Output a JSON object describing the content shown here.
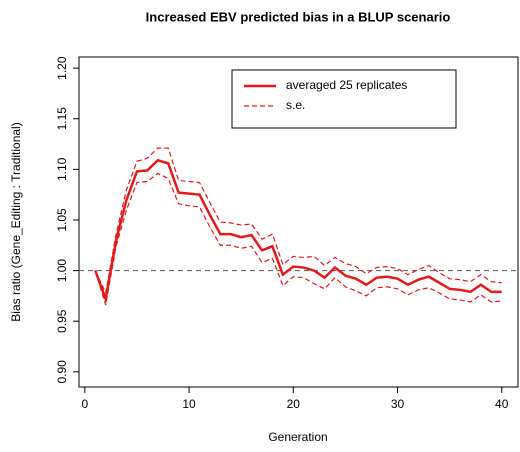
{
  "chart_data": {
    "type": "line",
    "title": "Increased EBV predicted bias in a BLUP scenario",
    "x_label": "Generation",
    "y_label": "Bias ratio (Gene_Editing : Traditional)",
    "x": [
      1,
      2,
      3,
      4,
      5,
      6,
      7,
      8,
      9,
      10,
      11,
      12,
      13,
      14,
      15,
      16,
      17,
      18,
      19,
      20,
      21,
      22,
      23,
      24,
      25,
      26,
      27,
      28,
      29,
      30,
      31,
      32,
      33,
      34,
      35,
      36,
      37,
      38,
      39,
      40
    ],
    "series": [
      {
        "name": "averaged 25 replicates",
        "color": "#e31a1c",
        "values": [
          1.0,
          0.972,
          1.03,
          1.07,
          1.098,
          1.099,
          1.109,
          1.106,
          1.077,
          1.076,
          1.075,
          1.055,
          1.036,
          1.036,
          1.033,
          1.035,
          1.02,
          1.024,
          0.996,
          1.004,
          1.003,
          1.0,
          0.993,
          1.003,
          0.995,
          0.992,
          0.986,
          0.993,
          0.994,
          0.992,
          0.986,
          0.991,
          0.994,
          0.988,
          0.982,
          0.981,
          0.979,
          0.986,
          0.979,
          0.979
        ]
      },
      {
        "name": "s.e.",
        "color": "#e31a1c",
        "upper": [
          1.0,
          0.978,
          1.036,
          1.08,
          1.108,
          1.111,
          1.121,
          1.121,
          1.089,
          1.088,
          1.087,
          1.067,
          1.048,
          1.047,
          1.045,
          1.046,
          1.031,
          1.036,
          1.006,
          1.014,
          1.013,
          1.014,
          1.005,
          1.013,
          1.007,
          1.004,
          0.997,
          1.003,
          1.004,
          1.002,
          0.996,
          1.001,
          1.005,
          0.998,
          0.992,
          0.991,
          0.989,
          0.996,
          0.989,
          0.988
        ],
        "lower": [
          1.0,
          0.966,
          1.024,
          1.06,
          1.087,
          1.088,
          1.096,
          1.091,
          1.066,
          1.064,
          1.063,
          1.043,
          1.025,
          1.025,
          1.022,
          1.024,
          1.008,
          1.012,
          0.985,
          0.994,
          0.993,
          0.987,
          0.982,
          0.993,
          0.984,
          0.98,
          0.975,
          0.983,
          0.984,
          0.982,
          0.976,
          0.981,
          0.983,
          0.978,
          0.972,
          0.971,
          0.969,
          0.976,
          0.969,
          0.97
        ]
      }
    ],
    "reference_line": 1.0,
    "xlim": [
      -0.56,
      41.56
    ],
    "ylim": [
      0.885,
      1.211
    ],
    "xticks": [
      0,
      10,
      20,
      30,
      40
    ],
    "yticks": [
      {
        "value": 0.9,
        "label": "0.90"
      },
      {
        "value": 0.95,
        "label": "0.95"
      },
      {
        "value": 1.0,
        "label": "1.00"
      },
      {
        "value": 1.05,
        "label": "1.05"
      },
      {
        "value": 1.1,
        "label": "1.10"
      },
      {
        "value": 1.15,
        "label": "1.15"
      },
      {
        "value": 1.2,
        "label": "1.20"
      }
    ],
    "legend": "top-right"
  }
}
